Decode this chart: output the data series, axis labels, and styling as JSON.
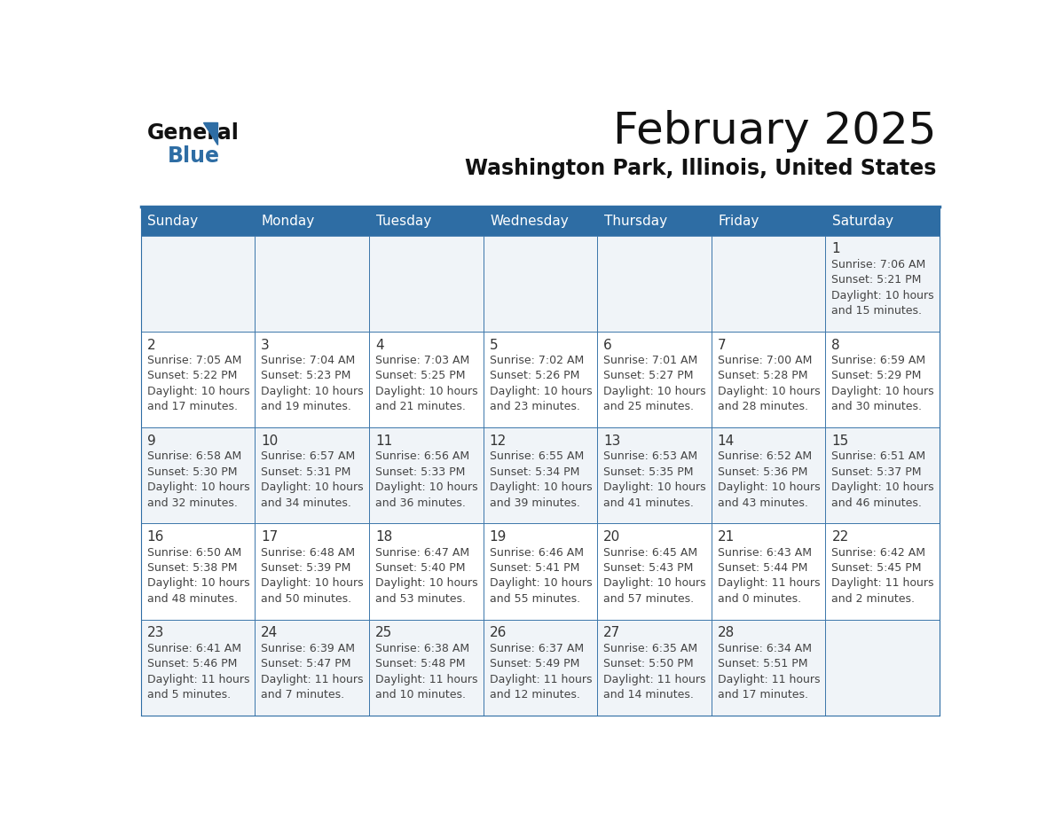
{
  "title": "February 2025",
  "subtitle": "Washington Park, Illinois, United States",
  "header_bg": "#2e6da4",
  "header_text_color": "#ffffff",
  "cell_bg_odd": "#f0f4f8",
  "cell_bg_even": "#ffffff",
  "cell_border_color": "#2e6da4",
  "day_number_color": "#333333",
  "info_text_color": "#444444",
  "days_of_week": [
    "Sunday",
    "Monday",
    "Tuesday",
    "Wednesday",
    "Thursday",
    "Friday",
    "Saturday"
  ],
  "calendar": [
    [
      null,
      null,
      null,
      null,
      null,
      null,
      {
        "day": "1",
        "sunrise": "Sunrise: 7:06 AM",
        "sunset": "Sunset: 5:21 PM",
        "daylight1": "Daylight: 10 hours",
        "daylight2": "and 15 minutes."
      }
    ],
    [
      {
        "day": "2",
        "sunrise": "Sunrise: 7:05 AM",
        "sunset": "Sunset: 5:22 PM",
        "daylight1": "Daylight: 10 hours",
        "daylight2": "and 17 minutes."
      },
      {
        "day": "3",
        "sunrise": "Sunrise: 7:04 AM",
        "sunset": "Sunset: 5:23 PM",
        "daylight1": "Daylight: 10 hours",
        "daylight2": "and 19 minutes."
      },
      {
        "day": "4",
        "sunrise": "Sunrise: 7:03 AM",
        "sunset": "Sunset: 5:25 PM",
        "daylight1": "Daylight: 10 hours",
        "daylight2": "and 21 minutes."
      },
      {
        "day": "5",
        "sunrise": "Sunrise: 7:02 AM",
        "sunset": "Sunset: 5:26 PM",
        "daylight1": "Daylight: 10 hours",
        "daylight2": "and 23 minutes."
      },
      {
        "day": "6",
        "sunrise": "Sunrise: 7:01 AM",
        "sunset": "Sunset: 5:27 PM",
        "daylight1": "Daylight: 10 hours",
        "daylight2": "and 25 minutes."
      },
      {
        "day": "7",
        "sunrise": "Sunrise: 7:00 AM",
        "sunset": "Sunset: 5:28 PM",
        "daylight1": "Daylight: 10 hours",
        "daylight2": "and 28 minutes."
      },
      {
        "day": "8",
        "sunrise": "Sunrise: 6:59 AM",
        "sunset": "Sunset: 5:29 PM",
        "daylight1": "Daylight: 10 hours",
        "daylight2": "and 30 minutes."
      }
    ],
    [
      {
        "day": "9",
        "sunrise": "Sunrise: 6:58 AM",
        "sunset": "Sunset: 5:30 PM",
        "daylight1": "Daylight: 10 hours",
        "daylight2": "and 32 minutes."
      },
      {
        "day": "10",
        "sunrise": "Sunrise: 6:57 AM",
        "sunset": "Sunset: 5:31 PM",
        "daylight1": "Daylight: 10 hours",
        "daylight2": "and 34 minutes."
      },
      {
        "day": "11",
        "sunrise": "Sunrise: 6:56 AM",
        "sunset": "Sunset: 5:33 PM",
        "daylight1": "Daylight: 10 hours",
        "daylight2": "and 36 minutes."
      },
      {
        "day": "12",
        "sunrise": "Sunrise: 6:55 AM",
        "sunset": "Sunset: 5:34 PM",
        "daylight1": "Daylight: 10 hours",
        "daylight2": "and 39 minutes."
      },
      {
        "day": "13",
        "sunrise": "Sunrise: 6:53 AM",
        "sunset": "Sunset: 5:35 PM",
        "daylight1": "Daylight: 10 hours",
        "daylight2": "and 41 minutes."
      },
      {
        "day": "14",
        "sunrise": "Sunrise: 6:52 AM",
        "sunset": "Sunset: 5:36 PM",
        "daylight1": "Daylight: 10 hours",
        "daylight2": "and 43 minutes."
      },
      {
        "day": "15",
        "sunrise": "Sunrise: 6:51 AM",
        "sunset": "Sunset: 5:37 PM",
        "daylight1": "Daylight: 10 hours",
        "daylight2": "and 46 minutes."
      }
    ],
    [
      {
        "day": "16",
        "sunrise": "Sunrise: 6:50 AM",
        "sunset": "Sunset: 5:38 PM",
        "daylight1": "Daylight: 10 hours",
        "daylight2": "and 48 minutes."
      },
      {
        "day": "17",
        "sunrise": "Sunrise: 6:48 AM",
        "sunset": "Sunset: 5:39 PM",
        "daylight1": "Daylight: 10 hours",
        "daylight2": "and 50 minutes."
      },
      {
        "day": "18",
        "sunrise": "Sunrise: 6:47 AM",
        "sunset": "Sunset: 5:40 PM",
        "daylight1": "Daylight: 10 hours",
        "daylight2": "and 53 minutes."
      },
      {
        "day": "19",
        "sunrise": "Sunrise: 6:46 AM",
        "sunset": "Sunset: 5:41 PM",
        "daylight1": "Daylight: 10 hours",
        "daylight2": "and 55 minutes."
      },
      {
        "day": "20",
        "sunrise": "Sunrise: 6:45 AM",
        "sunset": "Sunset: 5:43 PM",
        "daylight1": "Daylight: 10 hours",
        "daylight2": "and 57 minutes."
      },
      {
        "day": "21",
        "sunrise": "Sunrise: 6:43 AM",
        "sunset": "Sunset: 5:44 PM",
        "daylight1": "Daylight: 11 hours",
        "daylight2": "and 0 minutes."
      },
      {
        "day": "22",
        "sunrise": "Sunrise: 6:42 AM",
        "sunset": "Sunset: 5:45 PM",
        "daylight1": "Daylight: 11 hours",
        "daylight2": "and 2 minutes."
      }
    ],
    [
      {
        "day": "23",
        "sunrise": "Sunrise: 6:41 AM",
        "sunset": "Sunset: 5:46 PM",
        "daylight1": "Daylight: 11 hours",
        "daylight2": "and 5 minutes."
      },
      {
        "day": "24",
        "sunrise": "Sunrise: 6:39 AM",
        "sunset": "Sunset: 5:47 PM",
        "daylight1": "Daylight: 11 hours",
        "daylight2": "and 7 minutes."
      },
      {
        "day": "25",
        "sunrise": "Sunrise: 6:38 AM",
        "sunset": "Sunset: 5:48 PM",
        "daylight1": "Daylight: 11 hours",
        "daylight2": "and 10 minutes."
      },
      {
        "day": "26",
        "sunrise": "Sunrise: 6:37 AM",
        "sunset": "Sunset: 5:49 PM",
        "daylight1": "Daylight: 11 hours",
        "daylight2": "and 12 minutes."
      },
      {
        "day": "27",
        "sunrise": "Sunrise: 6:35 AM",
        "sunset": "Sunset: 5:50 PM",
        "daylight1": "Daylight: 11 hours",
        "daylight2": "and 14 minutes."
      },
      {
        "day": "28",
        "sunrise": "Sunrise: 6:34 AM",
        "sunset": "Sunset: 5:51 PM",
        "daylight1": "Daylight: 11 hours",
        "daylight2": "and 17 minutes."
      },
      null
    ]
  ],
  "logo_general": "General",
  "logo_blue": "Blue",
  "logo_color": "#2e6da4",
  "title_fontsize": 36,
  "subtitle_fontsize": 17,
  "header_fontsize": 11,
  "day_num_fontsize": 11,
  "cell_text_fontsize": 9
}
